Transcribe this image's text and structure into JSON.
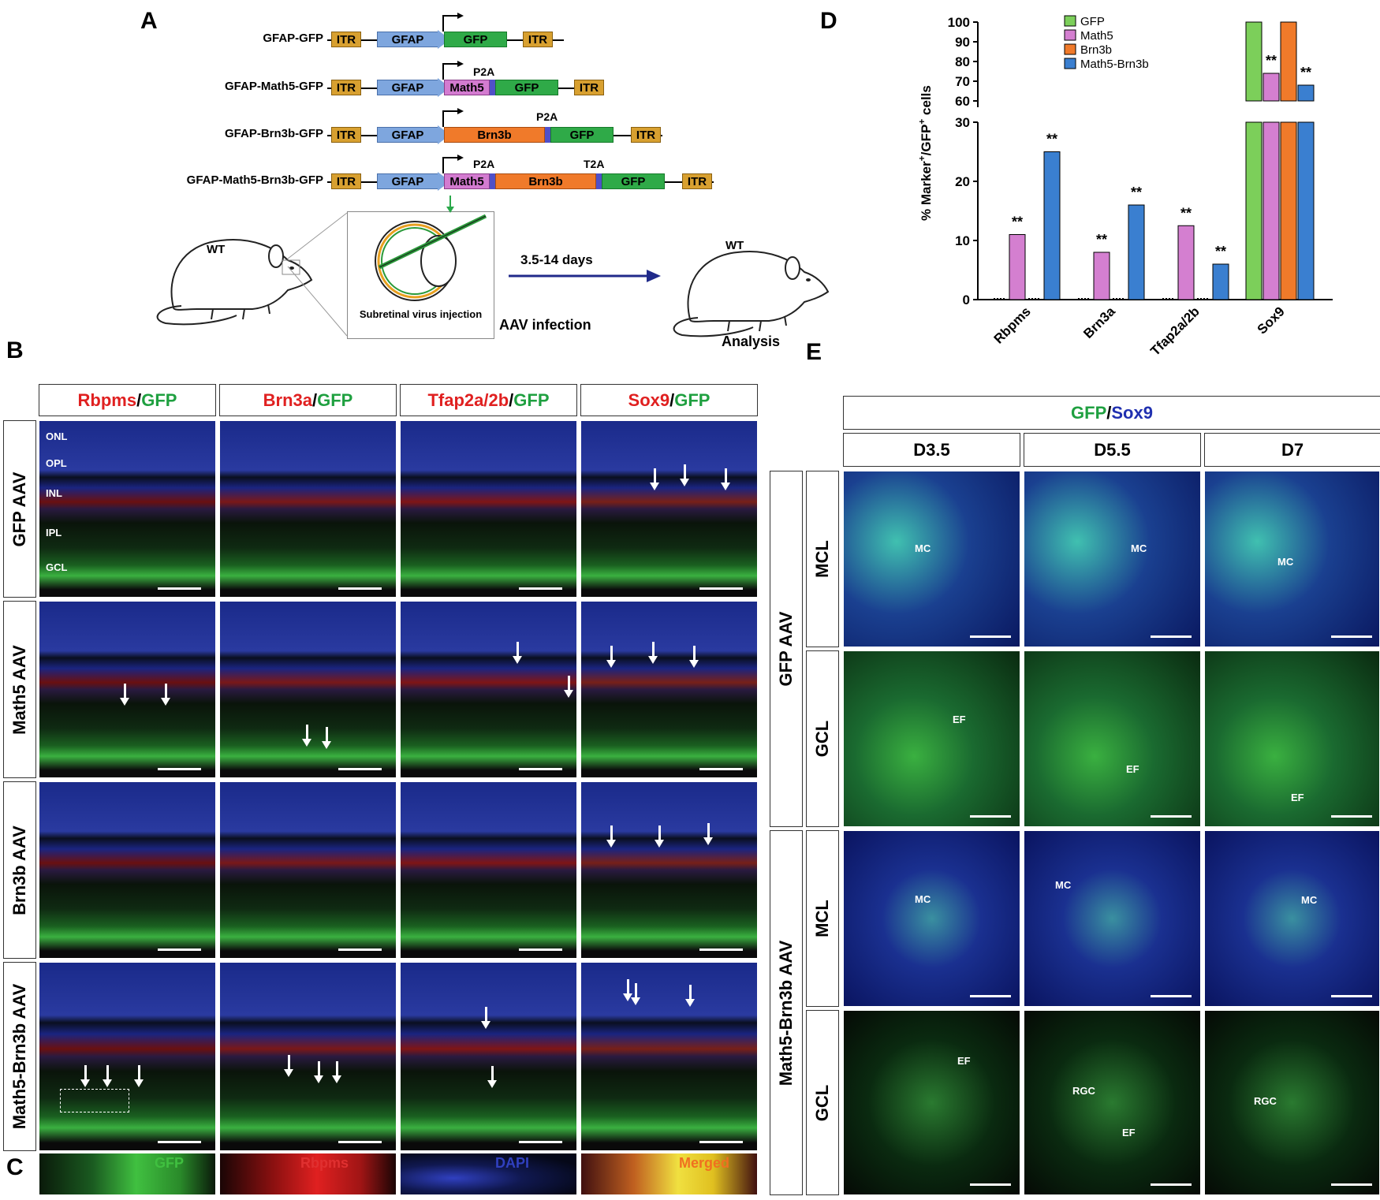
{
  "panels": {
    "A": "A",
    "B": "B",
    "C": "C",
    "D": "D",
    "E": "E"
  },
  "panelA": {
    "constructs": [
      {
        "name": "GFAP-GFP"
      },
      {
        "name": "GFAP-Math5-GFP"
      },
      {
        "name": "GFAP-Brn3b-GFP"
      },
      {
        "name": "GFAP-Math5-Brn3b-GFP"
      }
    ],
    "labels": {
      "itr": "ITR",
      "gfap": "GFAP",
      "gfp": "GFP",
      "math5": "Math5",
      "brn3b": "Brn3b",
      "p2a": "P2A",
      "t2a": "T2A"
    },
    "mouse_left": "WT",
    "mouse_right": "WT",
    "injection": "Subretinal virus injection",
    "duration": "3.5-14 days",
    "infection": "AAV infection",
    "analysis": "Analysis"
  },
  "panelB": {
    "columns": [
      {
        "red": "Rbpms",
        "green": "GFP"
      },
      {
        "red": "Brn3a",
        "green": "GFP"
      },
      {
        "red": "Tfap2a/2b",
        "green": "GFP"
      },
      {
        "red": "Sox9",
        "green": "GFP"
      }
    ],
    "slash": "/",
    "rows": [
      "GFP AAV",
      "Math5 AAV",
      "Brn3b AAV",
      "Math5-Brn3b AAV"
    ],
    "layers": [
      "ONL",
      "OPL",
      "INL",
      "IPL",
      "GCL"
    ]
  },
  "panelC": {
    "labels": [
      "GFP",
      "Rbpms",
      "DAPI",
      "Merged"
    ]
  },
  "panelE": {
    "title_green": "GFP",
    "title_blue": "Sox9",
    "slash": "/",
    "days": [
      "D3.5",
      "D5.5",
      "D7"
    ],
    "groups": [
      "GFP AAV",
      "Math5-Brn3b AAV"
    ],
    "layers": [
      "MCL",
      "GCL"
    ],
    "annotations": {
      "mc": "MC",
      "ef": "EF",
      "rgc": "RGC"
    }
  },
  "chart_data": {
    "type": "bar",
    "ylabel": "% Marker+/GFP+ cells",
    "ylabel_parts": {
      "a": "% Marker",
      "sup1": "+",
      "b": "/GFP",
      "sup2": "+",
      "c": " cells"
    },
    "categories": [
      "Rbpms",
      "Brn3a",
      "Tfap2a/2b",
      "Sox9"
    ],
    "series": [
      {
        "name": "GFP",
        "color": "#7ccf5a",
        "values": [
          0,
          0,
          0,
          100
        ]
      },
      {
        "name": "Math5",
        "color": "#d47fd0",
        "values": [
          11,
          8,
          12.5,
          74
        ]
      },
      {
        "name": "Brn3b",
        "color": "#f07a2a",
        "values": [
          0,
          0,
          0,
          100
        ]
      },
      {
        "name": "Math5-Brn3b",
        "color": "#3a7fd0",
        "values": [
          25,
          16,
          6,
          68
        ]
      }
    ],
    "y_break": {
      "lower": [
        0,
        30
      ],
      "upper": [
        60,
        100
      ]
    },
    "yticks_lower": [
      "0",
      "10",
      "20",
      "30"
    ],
    "yticks_upper": [
      "60",
      "70",
      "80",
      "90",
      "100"
    ],
    "significance": "**"
  }
}
